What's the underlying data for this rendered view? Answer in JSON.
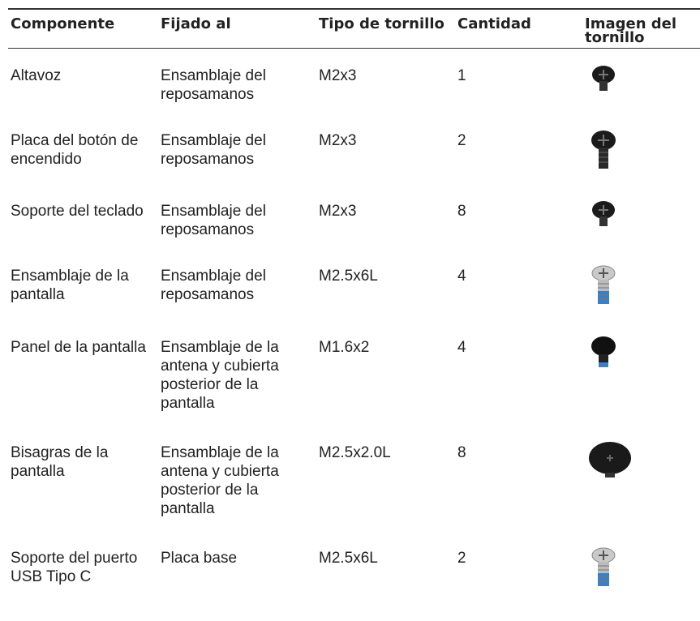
{
  "table": {
    "header": [
      "Componente",
      "Fijado al",
      "Tipo de tornillo",
      "Cantidad",
      "Imagen del tornillo"
    ],
    "rows": [
      [
        "Altavoz",
        "Ensamblaje del reposamanos",
        "M2x3",
        "1"
      ],
      [
        "Placa del botón de encendido",
        "Ensamblaje del reposamanos",
        "M2x3",
        "2"
      ],
      [
        "Soporte del teclado",
        "Ensamblaje del reposamanos",
        "M2x3",
        "8"
      ],
      [
        "Ensamblaje de la pantalla",
        "Ensamblaje del reposamanos",
        "M2.5x6L",
        "4"
      ],
      [
        "Panel de la pantalla",
        "Ensamblaje de la antena y cubierta posterior de la pantalla",
        "M1.6x2",
        "4"
      ],
      [
        "Bisagras de la pantalla",
        "Ensamblaje de la antena y cubierta posterior de la pantalla",
        "M2.5x2.0L",
        "8"
      ],
      [
        "Soporte del puerto USB Tipo C",
        "Placa base",
        "M2.5x6L",
        "2"
      ]
    ]
  }
}
